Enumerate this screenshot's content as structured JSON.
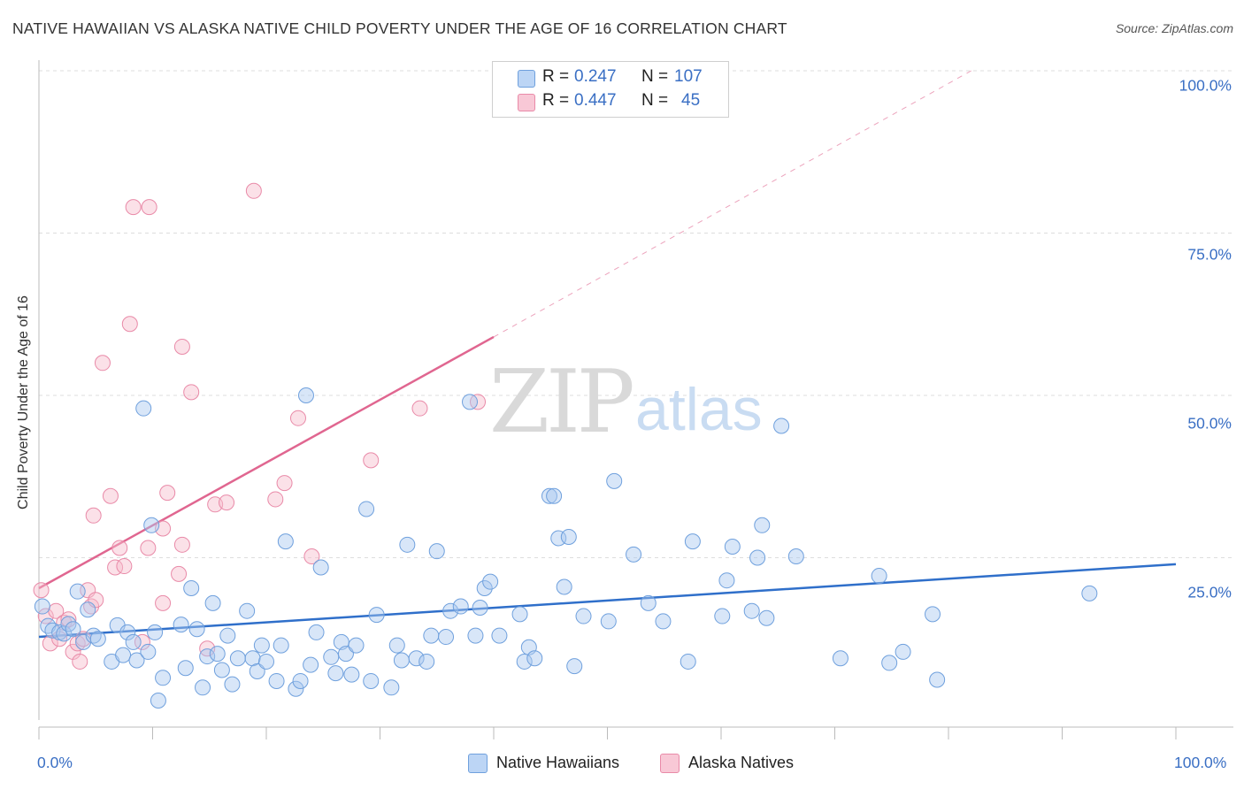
{
  "title": "NATIVE HAWAIIAN VS ALASKA NATIVE CHILD POVERTY UNDER THE AGE OF 16 CORRELATION CHART",
  "source": "Source: ZipAtlas.com",
  "watermark": {
    "zip": "ZIP",
    "atlas": "atlas"
  },
  "legend": {
    "r_label": "R =",
    "n_label": "N =",
    "series1": {
      "r": "0.247",
      "n": "107"
    },
    "series2": {
      "r": "0.447",
      "n": "45"
    }
  },
  "bottom_legend": {
    "series1": "Native Hawaiians",
    "series2": "Alaska Natives"
  },
  "colors": {
    "blue_fill": "#a9c8f0",
    "blue_stroke": "#6fa0dd",
    "blue_line": "#2f6fca",
    "pink_fill": "#f6bccd",
    "pink_stroke": "#e98aa8",
    "pink_line": "#e06690",
    "tick_text": "#3a6fc4",
    "grid": "#dddddd"
  },
  "chart_data": {
    "type": "scatter",
    "title": "NATIVE HAWAIIAN VS ALASKA NATIVE CHILD POVERTY UNDER THE AGE OF 16 CORRELATION CHART",
    "xlabel": "",
    "ylabel": "Child Poverty Under the Age of 16",
    "xlim": [
      0,
      100
    ],
    "ylim": [
      0,
      100
    ],
    "x_tick_labels": [
      "0.0%",
      "100.0%"
    ],
    "y_ticks": [
      25,
      50,
      75,
      100
    ],
    "y_tick_labels": [
      "25.0%",
      "50.0%",
      "75.0%",
      "100.0%"
    ],
    "grid": true,
    "series": [
      {
        "name": "Native Hawaiians",
        "r": 0.247,
        "n": 107,
        "trend": {
          "x": [
            0,
            100
          ],
          "y": [
            12.8,
            24.0
          ]
        },
        "points": [
          [
            0.3,
            17.5
          ],
          [
            0.8,
            14.5
          ],
          [
            1.2,
            13.8
          ],
          [
            1.8,
            13.5
          ],
          [
            2.2,
            13.3
          ],
          [
            2.6,
            14.8
          ],
          [
            3.0,
            14.0
          ],
          [
            3.4,
            19.8
          ],
          [
            3.9,
            12.0
          ],
          [
            4.3,
            17.0
          ],
          [
            4.8,
            13.0
          ],
          [
            5.2,
            12.5
          ],
          [
            6.4,
            9.0
          ],
          [
            6.9,
            14.6
          ],
          [
            7.4,
            10.0
          ],
          [
            7.8,
            13.5
          ],
          [
            8.3,
            12.0
          ],
          [
            8.6,
            9.2
          ],
          [
            9.2,
            48.0
          ],
          [
            9.6,
            10.5
          ],
          [
            9.9,
            30.0
          ],
          [
            10.2,
            13.5
          ],
          [
            10.5,
            3.0
          ],
          [
            10.9,
            6.5
          ],
          [
            12.5,
            14.7
          ],
          [
            12.9,
            8.0
          ],
          [
            13.4,
            20.3
          ],
          [
            13.9,
            14.0
          ],
          [
            14.4,
            5.0
          ],
          [
            14.8,
            9.8
          ],
          [
            15.3,
            18.0
          ],
          [
            15.7,
            10.2
          ],
          [
            16.1,
            7.7
          ],
          [
            16.6,
            13.0
          ],
          [
            17.0,
            5.5
          ],
          [
            17.5,
            9.5
          ],
          [
            18.3,
            16.8
          ],
          [
            18.8,
            9.5
          ],
          [
            19.2,
            7.5
          ],
          [
            19.6,
            11.5
          ],
          [
            20.0,
            9.0
          ],
          [
            20.9,
            6.0
          ],
          [
            21.3,
            11.5
          ],
          [
            21.7,
            27.5
          ],
          [
            22.6,
            4.8
          ],
          [
            23.0,
            6.0
          ],
          [
            23.5,
            50.0
          ],
          [
            23.9,
            8.5
          ],
          [
            24.4,
            13.5
          ],
          [
            24.8,
            23.5
          ],
          [
            25.7,
            9.7
          ],
          [
            26.1,
            7.2
          ],
          [
            26.6,
            12.0
          ],
          [
            27.0,
            10.2
          ],
          [
            27.5,
            7.0
          ],
          [
            27.9,
            11.5
          ],
          [
            28.8,
            32.5
          ],
          [
            29.2,
            6.0
          ],
          [
            29.7,
            16.2
          ],
          [
            31.0,
            5.0
          ],
          [
            31.5,
            11.5
          ],
          [
            31.9,
            9.2
          ],
          [
            32.4,
            27.0
          ],
          [
            33.2,
            9.5
          ],
          [
            34.1,
            9.0
          ],
          [
            34.5,
            13.0
          ],
          [
            35.0,
            26.0
          ],
          [
            35.8,
            12.8
          ],
          [
            36.2,
            16.8
          ],
          [
            37.1,
            17.5
          ],
          [
            37.9,
            49.0
          ],
          [
            38.4,
            13.0
          ],
          [
            38.8,
            17.3
          ],
          [
            39.2,
            20.3
          ],
          [
            39.7,
            21.3
          ],
          [
            40.5,
            13.0
          ],
          [
            42.3,
            16.3
          ],
          [
            42.7,
            9.0
          ],
          [
            43.1,
            11.2
          ],
          [
            43.6,
            9.5
          ],
          [
            44.9,
            34.5
          ],
          [
            45.3,
            34.5
          ],
          [
            45.7,
            28.0
          ],
          [
            46.2,
            20.5
          ],
          [
            46.6,
            28.2
          ],
          [
            47.1,
            8.3
          ],
          [
            47.9,
            16.0
          ],
          [
            50.1,
            15.2
          ],
          [
            50.6,
            36.8
          ],
          [
            52.3,
            25.5
          ],
          [
            53.6,
            18.0
          ],
          [
            54.9,
            15.2
          ],
          [
            57.1,
            9.0
          ],
          [
            57.5,
            27.5
          ],
          [
            60.5,
            21.5
          ],
          [
            60.1,
            16.0
          ],
          [
            61.0,
            26.7
          ],
          [
            62.7,
            16.8
          ],
          [
            63.2,
            25.0
          ],
          [
            63.6,
            30.0
          ],
          [
            64.0,
            15.7
          ],
          [
            65.3,
            45.3
          ],
          [
            66.6,
            25.2
          ],
          [
            70.5,
            9.5
          ],
          [
            74.8,
            8.8
          ],
          [
            73.9,
            22.2
          ],
          [
            76.0,
            10.5
          ],
          [
            78.6,
            16.3
          ],
          [
            79.0,
            6.2
          ],
          [
            92.4,
            19.5
          ]
        ]
      },
      {
        "name": "Alaska Natives",
        "r": 0.447,
        "n": 45,
        "trend": {
          "x": [
            0,
            40
          ],
          "y": [
            20.3,
            59.0
          ]
        },
        "trend_extension": {
          "x": [
            40,
            82
          ],
          "y": [
            59.0,
            100
          ]
        },
        "points": [
          [
            0.2,
            20.0
          ],
          [
            0.6,
            16.0
          ],
          [
            1.0,
            11.8
          ],
          [
            1.5,
            16.8
          ],
          [
            1.8,
            12.5
          ],
          [
            2.2,
            15.0
          ],
          [
            2.6,
            15.5
          ],
          [
            3.0,
            10.5
          ],
          [
            3.4,
            11.8
          ],
          [
            3.6,
            9.0
          ],
          [
            3.9,
            12.5
          ],
          [
            4.3,
            20.0
          ],
          [
            4.6,
            17.5
          ],
          [
            5.0,
            18.5
          ],
          [
            4.8,
            31.5
          ],
          [
            5.6,
            55.0
          ],
          [
            6.3,
            34.5
          ],
          [
            6.7,
            23.5
          ],
          [
            7.1,
            26.5
          ],
          [
            7.5,
            23.7
          ],
          [
            8.0,
            61.0
          ],
          [
            8.3,
            79.0
          ],
          [
            9.1,
            12.0
          ],
          [
            9.6,
            26.5
          ],
          [
            9.7,
            79.0
          ],
          [
            10.9,
            18.0
          ],
          [
            10.9,
            29.5
          ],
          [
            11.3,
            35.0
          ],
          [
            12.3,
            22.5
          ],
          [
            12.6,
            27.0
          ],
          [
            12.6,
            57.5
          ],
          [
            13.4,
            50.5
          ],
          [
            14.8,
            11.0
          ],
          [
            15.5,
            33.2
          ],
          [
            16.5,
            33.5
          ],
          [
            18.9,
            81.5
          ],
          [
            20.8,
            34.0
          ],
          [
            21.6,
            36.5
          ],
          [
            22.8,
            46.5
          ],
          [
            24.0,
            25.2
          ],
          [
            29.2,
            40.0
          ],
          [
            33.5,
            48.0
          ],
          [
            38.6,
            49.0
          ]
        ]
      }
    ]
  }
}
